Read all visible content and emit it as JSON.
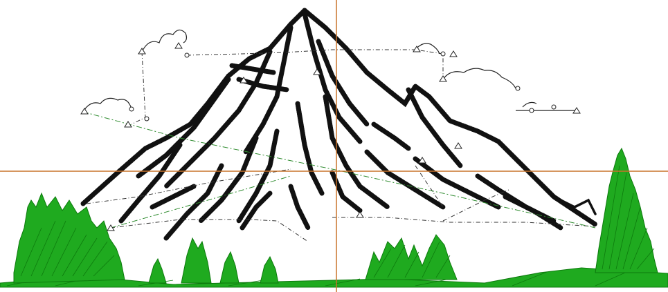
{
  "canvas": {
    "background": "#ffffff",
    "guide_color": "#c8732a",
    "stitch_color": "#111111",
    "tree_color": "#1faa1f",
    "tree_dark_color": "#0d7a0d",
    "travel_line_color": "#333333",
    "trim_line_color": "#2e8b2e"
  },
  "design": {
    "subject": "mountain-with-pine-trees-embroidery",
    "icons": [
      "start-marker-icon",
      "stop-marker-icon",
      "jump-marker-icon"
    ]
  }
}
